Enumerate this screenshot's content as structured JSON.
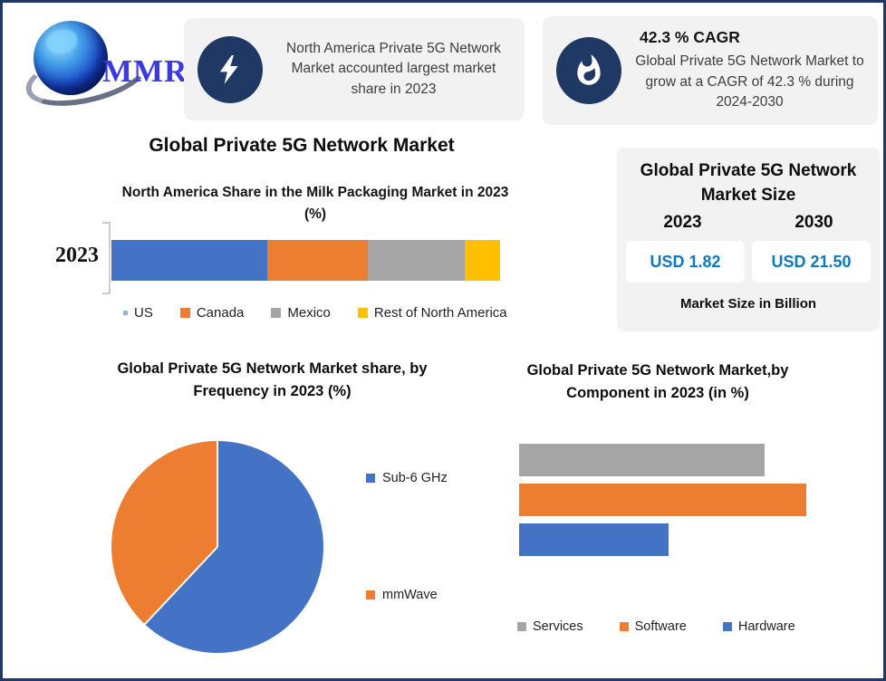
{
  "logo": {
    "text": "MMR"
  },
  "callouts": {
    "left": {
      "icon": "lightning-icon",
      "text": "North America Private 5G Network Market accounted largest market share in 2023"
    },
    "right": {
      "icon": "flame-icon",
      "title": "42.3 % CAGR",
      "text": "Global Private 5G Network Market to grow at a CAGR of 42.3 % during 2024-2030"
    }
  },
  "main_title": "Global Private 5G Network Market",
  "market_size_panel": {
    "title": "Global Private 5G Network Market Size",
    "years": [
      "2023",
      "2030"
    ],
    "values": [
      "USD 1.82",
      "USD 21.50"
    ],
    "footnote": "Market Size in Billion",
    "value_color": "#0e78c0"
  },
  "colors": {
    "navy": "#1f3864",
    "panel_bg": "#f2f2f2",
    "blue": "#4472c4",
    "orange": "#ed7d31",
    "gray": "#a5a5a5",
    "yellow": "#ffc000"
  },
  "chart_data": [
    {
      "type": "bar",
      "variant": "stacked-horizontal",
      "title": "North America Share in the Milk Packaging Market in 2023 (%)",
      "categories": [
        "2023"
      ],
      "series": [
        {
          "name": "US",
          "color": "#4472c4",
          "values": [
            40
          ]
        },
        {
          "name": "Canada",
          "color": "#ed7d31",
          "values": [
            26
          ]
        },
        {
          "name": "Mexico",
          "color": "#a5a5a5",
          "values": [
            25
          ]
        },
        {
          "name": "Rest of North America",
          "color": "#ffc000",
          "values": [
            9
          ]
        }
      ],
      "xlim": [
        0,
        100
      ],
      "legend_position": "bottom",
      "grid": false
    },
    {
      "type": "pie",
      "title": "Global Private 5G Network Market share, by Frequency in 2023  (%)",
      "labels": [
        "Sub-6 GHz",
        "mmWave"
      ],
      "values": [
        62,
        38
      ],
      "colors": [
        "#4472c4",
        "#ed7d31"
      ],
      "start_angle_deg": 0,
      "legend_position": "right"
    },
    {
      "type": "bar",
      "variant": "horizontal",
      "title": "Global Private 5G Network Market,by Component in 2023 (in %)",
      "categories": [
        "Services",
        "Software",
        "Hardware"
      ],
      "values": [
        41,
        48,
        25
      ],
      "colors": [
        "#a5a5a5",
        "#ed7d31",
        "#4472c4"
      ],
      "xlim": [
        0,
        50
      ],
      "legend_position": "bottom",
      "grid": false
    }
  ]
}
